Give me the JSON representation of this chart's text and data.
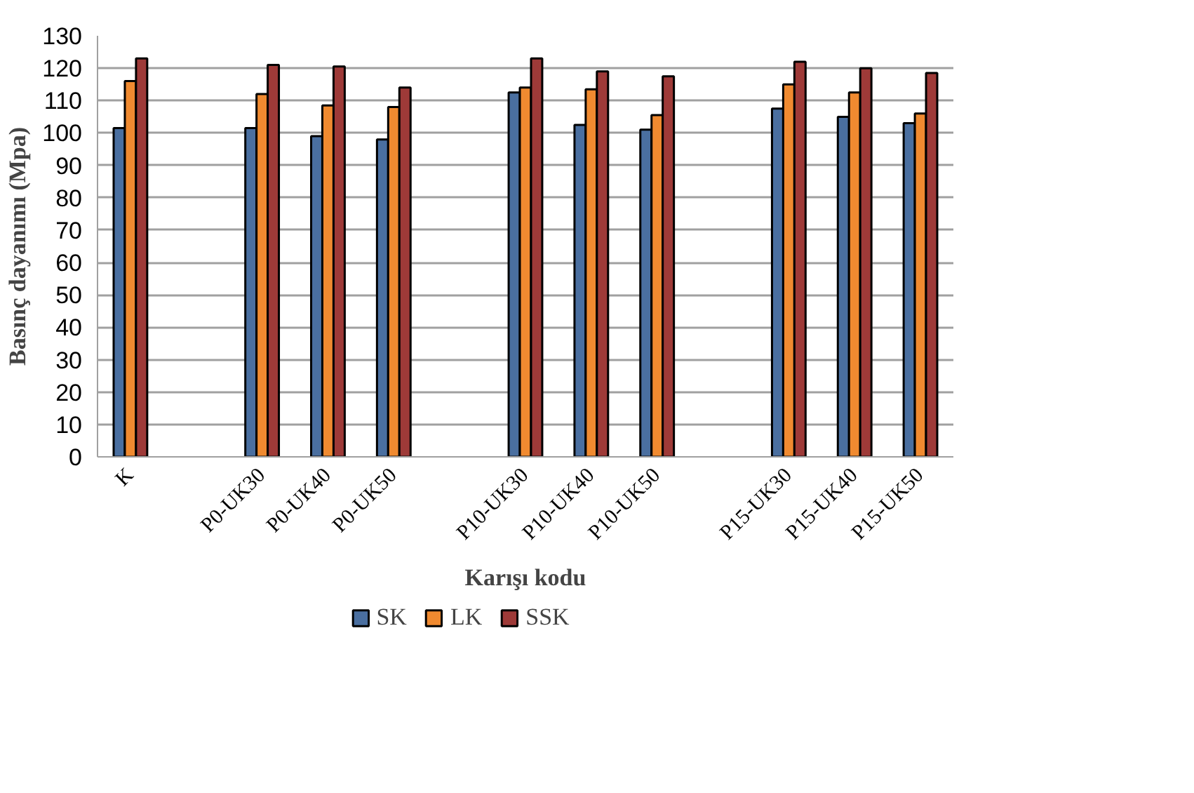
{
  "chart_data": {
    "type": "bar",
    "xlabel": "Karışı kodu",
    "ylabel": "Basınç dayanımı (Mpa)",
    "categories": [
      "K",
      null,
      "P0-UK30",
      "P0-UK40",
      "P0-UK50",
      null,
      "P10-UK30",
      "P10-UK40",
      "P10-UK50",
      null,
      "P15-UK30",
      "P15-UK40",
      "P15-UK50"
    ],
    "series": [
      {
        "name": "SK",
        "color": "#4a6fa0",
        "values": [
          101.5,
          null,
          101.5,
          99,
          98,
          null,
          112.5,
          102.5,
          101,
          null,
          107.5,
          105,
          103
        ]
      },
      {
        "name": "LK",
        "color": "#f08a30",
        "values": [
          116,
          null,
          112,
          108.5,
          108,
          null,
          114,
          113.5,
          105.5,
          null,
          115,
          112.5,
          106
        ]
      },
      {
        "name": "SSK",
        "color": "#9e3a38",
        "values": [
          123,
          null,
          121,
          120.5,
          114,
          null,
          123,
          119,
          117.5,
          null,
          122,
          120,
          118.5
        ]
      }
    ],
    "ylim": [
      0,
      130
    ],
    "yticks": [
      0,
      10,
      20,
      30,
      40,
      50,
      60,
      70,
      80,
      90,
      100,
      110,
      120,
      130
    ],
    "grid": "y",
    "legend": "bottom"
  }
}
